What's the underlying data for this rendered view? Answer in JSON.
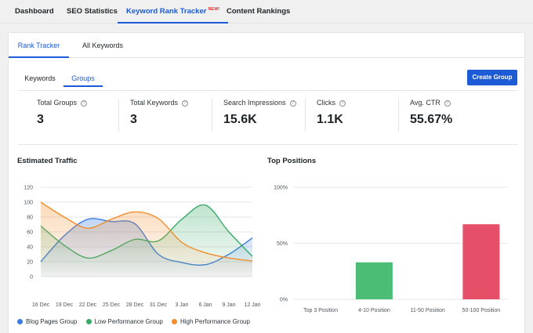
{
  "topnav": {
    "items": [
      "Dashboard",
      "SEO Statistics",
      "Keyword Rank Tracker",
      "Content Rankings"
    ],
    "badge": "NEW!"
  },
  "subtabs": [
    "Rank Tracker",
    "All Keywords"
  ],
  "group_tabs": [
    "Keywords",
    "Groups"
  ],
  "create_group_label": "Create Group",
  "stats": [
    {
      "label": "Total Groups",
      "value": "3"
    },
    {
      "label": "Total Keywords",
      "value": "3"
    },
    {
      "label": "Search Impressions",
      "value": "15.6K"
    },
    {
      "label": "Clicks",
      "value": "1.1K"
    },
    {
      "label": "Avg. CTR",
      "value": "55.67%"
    }
  ],
  "help_icon_glyph": "?",
  "colors": {
    "accent": "#1c5ad6",
    "blue_series": "#3b7de0",
    "green_series": "#3aaa6a",
    "orange_series": "#f28d2c",
    "bar_green": "#4bbd74",
    "bar_red": "#e55068"
  },
  "chart_data": [
    {
      "type": "area",
      "title": "Estimated Traffic",
      "x": [
        "16 Dec",
        "19 Dec",
        "22 Dec",
        "25 Dec",
        "28 Dec",
        "31 Dec",
        "3 Jan",
        "6 Jan",
        "9 Jan",
        "12 Jan"
      ],
      "ylim": [
        0,
        120
      ],
      "yticks": [
        "0",
        "20",
        "40",
        "60",
        "80",
        "100",
        "120"
      ],
      "grid": true,
      "legend_position": "bottom",
      "series": [
        {
          "name": "Blog Pages Group",
          "color": "#3b7de0",
          "values": [
            20,
            55,
            77,
            74,
            71,
            30,
            19,
            16,
            30,
            52
          ]
        },
        {
          "name": "Low Performance Group",
          "color": "#3aaa6a",
          "values": [
            68,
            42,
            25,
            35,
            50,
            48,
            77,
            96,
            60,
            27
          ]
        },
        {
          "name": "High Performance Group",
          "color": "#f28d2c",
          "values": [
            100,
            80,
            65,
            77,
            87,
            78,
            46,
            32,
            25,
            21
          ]
        }
      ]
    },
    {
      "type": "bar",
      "title": "Top Positions",
      "categories": [
        "Top 3 Position",
        "4-10 Position",
        "11-50 Position",
        "50-100 Position"
      ],
      "values": [
        0,
        33,
        0,
        67
      ],
      "colors": [
        "#4bbd74",
        "#4bbd74",
        "#4bbd74",
        "#e55068"
      ],
      "ylim": [
        0,
        100
      ],
      "yticks": [
        "0%",
        "50%",
        "100%"
      ],
      "grid": true
    }
  ]
}
